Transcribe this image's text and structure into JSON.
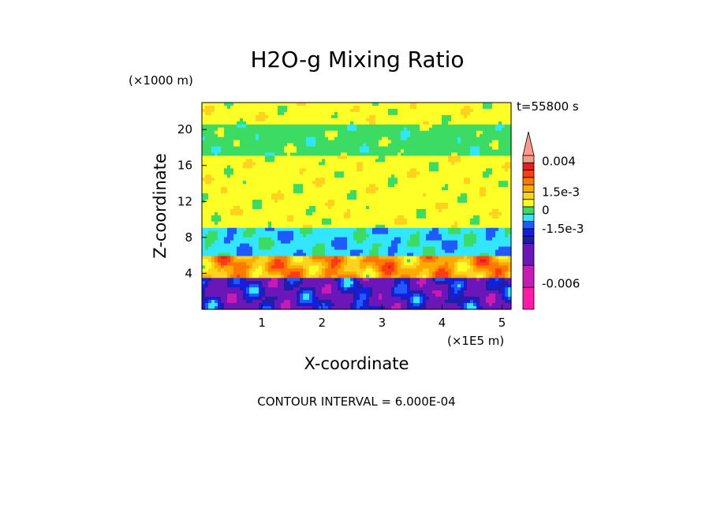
{
  "chart_data": {
    "type": "heatmap",
    "title": "H2O-g Mixing Ratio",
    "xlabel": "X-coordinate",
    "ylabel": "Z-coordinate",
    "x_unit": "(×1E5 m)",
    "y_unit": "(×1000 m)",
    "time_label": "t=55800 s",
    "footer": "CONTOUR INTERVAL = 6.000E-04",
    "xlim": [
      0,
      5.15
    ],
    "ylim": [
      0,
      23
    ],
    "x_ticks": [
      {
        "value": 1,
        "label": "1"
      },
      {
        "value": 2,
        "label": "2"
      },
      {
        "value": 3,
        "label": "3"
      },
      {
        "value": 4,
        "label": "4"
      },
      {
        "value": 5,
        "label": "5"
      }
    ],
    "y_ticks": [
      {
        "value": 4,
        "label": "4"
      },
      {
        "value": 8,
        "label": "8"
      },
      {
        "value": 12,
        "label": "12"
      },
      {
        "value": 16,
        "label": "16"
      },
      {
        "value": 20,
        "label": "20"
      }
    ],
    "colorbar": {
      "min": -0.0081,
      "max": 0.0045,
      "bins": [
        {
          "from": -0.0081,
          "to": -0.0063,
          "color": "#ff1aa8"
        },
        {
          "from": -0.0063,
          "to": -0.0045,
          "color": "#c81ab4"
        },
        {
          "from": -0.0045,
          "to": -0.0027,
          "color": "#6a16b8"
        },
        {
          "from": -0.0027,
          "to": -0.0021,
          "color": "#1e1ea8"
        },
        {
          "from": -0.0021,
          "to": -0.0015,
          "color": "#141ee0"
        },
        {
          "from": -0.0015,
          "to": -0.0009,
          "color": "#1e5aff"
        },
        {
          "from": -0.0009,
          "to": -0.0003,
          "color": "#32e6ff"
        },
        {
          "from": -0.0003,
          "to": 0.0003,
          "color": "#3cdc64"
        },
        {
          "from": 0.0003,
          "to": 0.0009,
          "color": "#ffff28"
        },
        {
          "from": 0.0009,
          "to": 0.0015,
          "color": "#ffd21e"
        },
        {
          "from": 0.0015,
          "to": 0.0021,
          "color": "#ffaa00"
        },
        {
          "from": 0.0021,
          "to": 0.0027,
          "color": "#ff7800"
        },
        {
          "from": 0.0027,
          "to": 0.0033,
          "color": "#ff3c14"
        },
        {
          "from": 0.0033,
          "to": 0.0039,
          "color": "#e61e1e"
        },
        {
          "from": 0.0039,
          "to": 0.0045,
          "color": "#ff9a8a"
        }
      ],
      "labels": [
        {
          "value": 0.004,
          "label": "0.004"
        },
        {
          "value": 0.0015,
          "label": "1.5e-3"
        },
        {
          "value": 0,
          "label": "0"
        },
        {
          "value": -0.0015,
          "label": "-1.5e-3"
        },
        {
          "value": -0.006,
          "label": "-0.006"
        }
      ]
    },
    "field_bands": [
      {
        "z_from": 20.5,
        "z_to": 23,
        "dominant": 0.0006
      },
      {
        "z_from": 17,
        "z_to": 20.5,
        "dominant": 0.0
      },
      {
        "z_from": 9,
        "z_to": 17,
        "dominant": 0.0006
      },
      {
        "z_from": 6,
        "z_to": 9,
        "dominant": -0.0006
      },
      {
        "z_from": 3.5,
        "z_to": 6,
        "dominant": 0.0018
      },
      {
        "z_from": 0,
        "z_to": 3.5,
        "dominant": -0.0024
      }
    ]
  }
}
